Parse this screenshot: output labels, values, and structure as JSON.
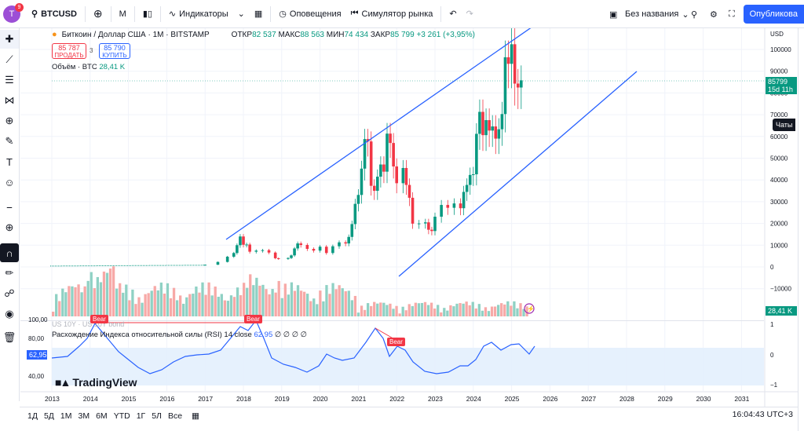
{
  "topbar": {
    "avatar_letter": "T",
    "avatar_badge": "9",
    "symbol": "BTCUSD",
    "interval": "M",
    "indicators": "Индикаторы",
    "alerts": "Оповещения",
    "replay": "Симулятор рынка",
    "layout_name": "Без названия",
    "publish": "Опубликова"
  },
  "legend": {
    "title": "Биткоин / Доллар США · 1М · BITSTAMP",
    "open_label": "ОТКР",
    "open": "82 537",
    "high_label": "МАКС",
    "high": "88 563",
    "low_label": "МИН",
    "low": "74 434",
    "close_label": "ЗАКР",
    "close": "85 799",
    "change": "+3 261 (+3,95%)"
  },
  "trade": {
    "sell_price": "85 787",
    "sell_label": "ПРОДАТЬ",
    "spread": "3",
    "buy_price": "85 790",
    "buy_label": "КУПИТЬ"
  },
  "volume": {
    "label": "Объём · BTC",
    "value": "28,41 K",
    "tag": "28,41 K"
  },
  "rsi": {
    "label": "Расхождение Индекса относительной силы (RSI) 14 close",
    "value": "62,95",
    "extra": "∅ ∅ ∅ ∅",
    "tag": "62,95",
    "bear_labels": [
      "Bear",
      "Bear",
      "Bear"
    ],
    "overlay_text": "US 10Y · US 10Y bond"
  },
  "price_axis": {
    "currency": "USD",
    "ticks": [
      "100000",
      "90000",
      "80000",
      "70000",
      "60000",
      "50000",
      "40000",
      "30000",
      "20000",
      "10000",
      "0",
      "−10000"
    ],
    "last_price": "85799",
    "countdown": "15d 11h"
  },
  "rsi_axis": {
    "left_ticks": [
      "100,00",
      "80,00",
      "40,00"
    ],
    "right_ticks": [
      "1",
      "0",
      "−1"
    ]
  },
  "time_axis": [
    "2013",
    "2014",
    "2015",
    "2016",
    "2017",
    "2018",
    "2019",
    "2020",
    "2021",
    "2022",
    "2023",
    "2024",
    "2025",
    "2026",
    "2027",
    "2028",
    "2029",
    "2030",
    "2031"
  ],
  "chats": "Чаты",
  "logo": "TradingView",
  "bottom": {
    "ranges": [
      "1Д",
      "5Д",
      "1М",
      "3М",
      "6М",
      "YTD",
      "1Г",
      "5Л",
      "Все"
    ],
    "clock": "16:04:43 UTC+3"
  },
  "colors": {
    "up": "#089981",
    "down": "#f23645",
    "accent": "#2962ff",
    "rsi_band": "#e3f0fd"
  },
  "chart_data": {
    "type": "candlestick",
    "title": "Биткоин / Доллар США · 1М · BITSTAMP",
    "ylim": [
      -15000,
      110000
    ],
    "x_range": [
      "2012-09",
      "2031-06"
    ],
    "series": [
      {
        "x": "2017-01",
        "y": 1000
      },
      {
        "x": "2017-05",
        "y": 2300
      },
      {
        "x": "2017-08",
        "y": 4700
      },
      {
        "x": "2017-10",
        "y": 6400
      },
      {
        "x": "2017-11",
        "y": 10000
      },
      {
        "x": "2017-12",
        "y": 14000
      },
      {
        "x": "2018-01",
        "y": 10200
      },
      {
        "x": "2018-02",
        "y": 10300
      },
      {
        "x": "2018-03",
        "y": 7000
      },
      {
        "x": "2018-05",
        "y": 7500
      },
      {
        "x": "2018-07",
        "y": 7700
      },
      {
        "x": "2018-09",
        "y": 6600
      },
      {
        "x": "2018-11",
        "y": 4000
      },
      {
        "x": "2018-12",
        "y": 3700
      },
      {
        "x": "2019-03",
        "y": 4100
      },
      {
        "x": "2019-04",
        "y": 5300
      },
      {
        "x": "2019-05",
        "y": 8500
      },
      {
        "x": "2019-06",
        "y": 10800
      },
      {
        "x": "2019-07",
        "y": 10100
      },
      {
        "x": "2019-09",
        "y": 8300
      },
      {
        "x": "2019-11",
        "y": 7500
      },
      {
        "x": "2020-01",
        "y": 9300
      },
      {
        "x": "2020-03",
        "y": 6400
      },
      {
        "x": "2020-05",
        "y": 9500
      },
      {
        "x": "2020-07",
        "y": 11300
      },
      {
        "x": "2020-09",
        "y": 10800
      },
      {
        "x": "2020-10",
        "y": 13800
      },
      {
        "x": "2020-11",
        "y": 19700
      },
      {
        "x": "2020-12",
        "y": 29000
      },
      {
        "x": "2021-01",
        "y": 33100
      },
      {
        "x": "2021-02",
        "y": 45200
      },
      {
        "x": "2021-03",
        "y": 58800
      },
      {
        "x": "2021-04",
        "y": 57700
      },
      {
        "x": "2021-05",
        "y": 37300
      },
      {
        "x": "2021-06",
        "y": 35000
      },
      {
        "x": "2021-07",
        "y": 41500
      },
      {
        "x": "2021-08",
        "y": 47100
      },
      {
        "x": "2021-09",
        "y": 43800
      },
      {
        "x": "2021-10",
        "y": 61300
      },
      {
        "x": "2021-11",
        "y": 57000
      },
      {
        "x": "2021-12",
        "y": 46200
      },
      {
        "x": "2022-01",
        "y": 38500
      },
      {
        "x": "2022-03",
        "y": 45500
      },
      {
        "x": "2022-04",
        "y": 37700
      },
      {
        "x": "2022-05",
        "y": 31800
      },
      {
        "x": "2022-06",
        "y": 19900
      },
      {
        "x": "2022-08",
        "y": 20000
      },
      {
        "x": "2022-10",
        "y": 20500
      },
      {
        "x": "2022-11",
        "y": 17100
      },
      {
        "x": "2022-12",
        "y": 16500
      },
      {
        "x": "2023-01",
        "y": 23100
      },
      {
        "x": "2023-03",
        "y": 28500
      },
      {
        "x": "2023-05",
        "y": 27200
      },
      {
        "x": "2023-07",
        "y": 29200
      },
      {
        "x": "2023-09",
        "y": 27000
      },
      {
        "x": "2023-10",
        "y": 34500
      },
      {
        "x": "2023-11",
        "y": 37700
      },
      {
        "x": "2023-12",
        "y": 42300
      },
      {
        "x": "2024-01",
        "y": 42600
      },
      {
        "x": "2024-02",
        "y": 61200
      },
      {
        "x": "2024-03",
        "y": 71300
      },
      {
        "x": "2024-04",
        "y": 60600
      },
      {
        "x": "2024-05",
        "y": 67500
      },
      {
        "x": "2024-06",
        "y": 62700
      },
      {
        "x": "2024-07",
        "y": 64600
      },
      {
        "x": "2024-08",
        "y": 59000
      },
      {
        "x": "2024-09",
        "y": 63300
      },
      {
        "x": "2024-10",
        "y": 70300
      },
      {
        "x": "2024-11",
        "y": 96400
      },
      {
        "x": "2024-12",
        "y": 93400
      },
      {
        "x": "2025-01",
        "y": 102400
      },
      {
        "x": "2025-02",
        "y": 84300
      },
      {
        "x": "2025-03",
        "y": 82500
      },
      {
        "x": "2025-04",
        "y": 85799
      }
    ]
  }
}
